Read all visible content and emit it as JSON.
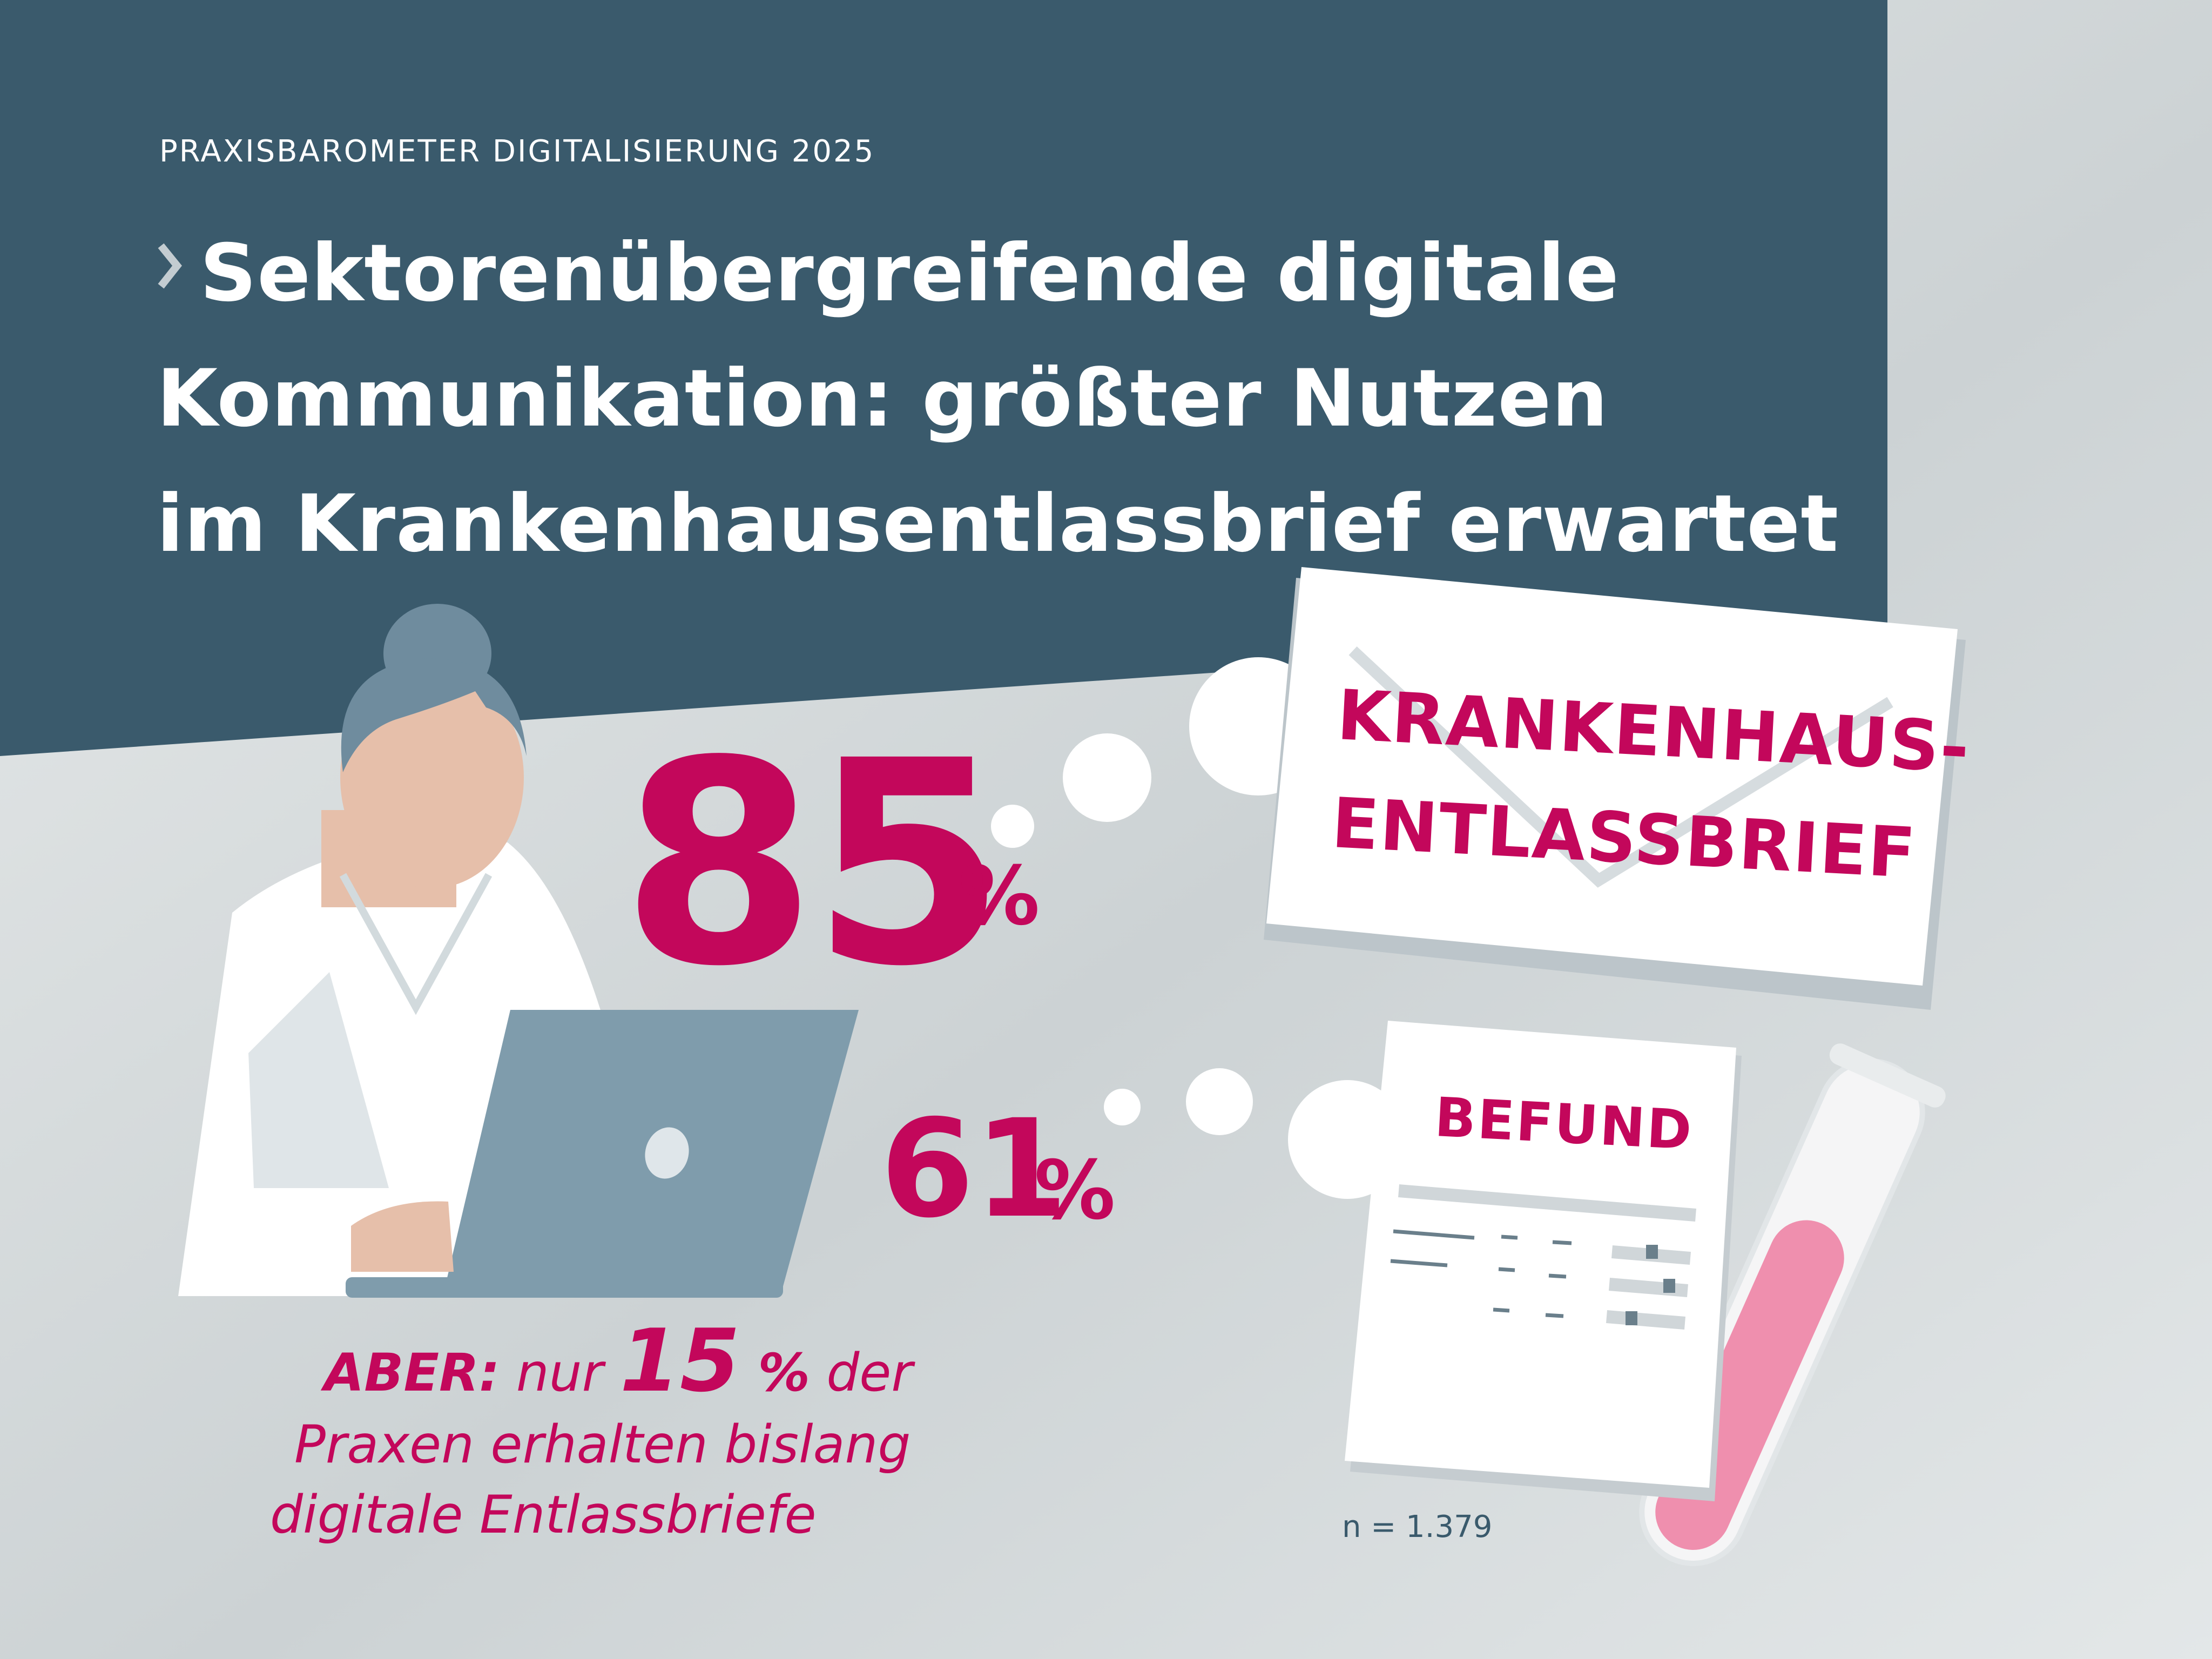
{
  "header": {
    "kicker": "PRAXISBAROMETER DIGITALISIERUNG 2025",
    "title_lines": [
      "Sektorenübergreifende digitale",
      "Kommunikation: größter Nutzen",
      "im Krankenhausentlassbrief erwartet"
    ]
  },
  "stats": {
    "primary": {
      "value": "85",
      "sign": "%",
      "label_lines": [
        "KRANKENHAUS-",
        "ENTLASSBRIEF"
      ]
    },
    "secondary": {
      "value": "61",
      "sign": "%",
      "label": "BEFUND"
    }
  },
  "note": {
    "line1_prefix": "ABER:",
    "line1_mid": " nur ",
    "line1_num": "15",
    "line1_pct": " %",
    "line1_suffix": " der",
    "line2": "Praxen erhalten bislang",
    "line3": "digitale Entlassbriefe"
  },
  "sample": "n = 1.379",
  "colors": {
    "accent": "#c3075b",
    "header_bg": "#3a5a6c",
    "laptop": "#7f9cac",
    "hair": "#6f8c9e",
    "skin": "#e6bfaa"
  }
}
